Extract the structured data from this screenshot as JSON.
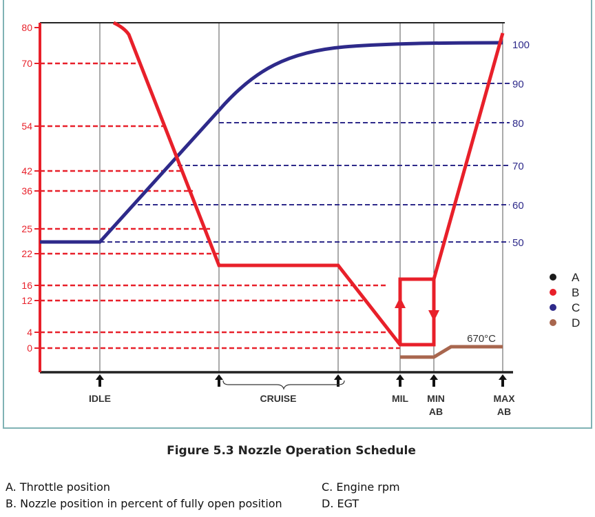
{
  "chart_data": {
    "type": "line",
    "title": "Figure 5.3 Nozzle Operation Schedule",
    "left_axis": {
      "ticks": [
        80,
        70,
        54,
        42,
        36,
        25,
        22,
        16,
        12,
        4,
        0
      ]
    },
    "right_axis": {
      "ticks": [
        100,
        90,
        80,
        70,
        60,
        50
      ]
    },
    "x_stations": [
      "IDLE",
      "CRUISE",
      "MIL",
      "MIN AB",
      "MAX AB"
    ],
    "x_labels": [
      {
        "line1": "IDLE",
        "line2": ""
      },
      {
        "line1": "CRUISE",
        "line2": ""
      },
      {
        "line1": "MIL",
        "line2": ""
      },
      {
        "line1": "MIN",
        "line2": "AB"
      },
      {
        "line1": "MAX",
        "line2": "AB"
      }
    ],
    "legend": [
      {
        "key": "A",
        "color": "#1a1a1a"
      },
      {
        "key": "B",
        "color": "#e8202a"
      },
      {
        "key": "C",
        "color": "#2e2a8a"
      },
      {
        "key": "D",
        "color": "#a8664e"
      }
    ],
    "series": [
      {
        "key": "B",
        "axis": "left",
        "points_desc": "nozzle: ~80 near idle, falls to ~20 at cruise, flat through cruise, falls to 0 at MIL, jumps to ~17 between MIL and MIN AB, rises to ~80 at MAX AB",
        "values": {
          "start": 80,
          "cruise": 20,
          "mil": 0,
          "ab_step": 17,
          "max_ab": 80
        }
      },
      {
        "key": "C",
        "axis": "right",
        "values": {
          "idle": 50,
          "cruise_start": 82,
          "mil": 100,
          "max_ab": 100
        }
      },
      {
        "key": "D",
        "values": {
          "max_ab_label": "670°C"
        }
      }
    ],
    "annotation": "670°C",
    "grid": "dashed reference lines at tick values",
    "legend_placement": "right"
  },
  "notes": {
    "a": "A. Throttle position",
    "b": "B. Nozzle position in percent of fully open position",
    "c": "C. Engine rpm",
    "d": "D. EGT"
  }
}
